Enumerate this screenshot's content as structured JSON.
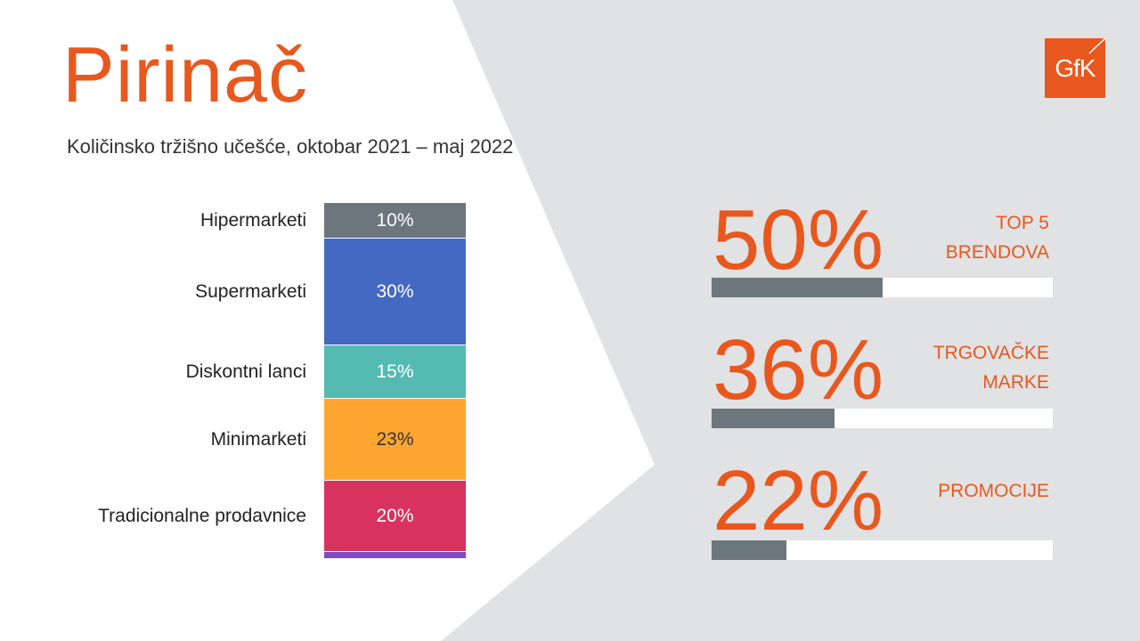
{
  "title": "Pirinač",
  "subtitle": "Količinsko tržišno učešće, oktobar 2021 – maj 2022",
  "logo_text": "GfK",
  "colors": {
    "accent": "#E8581E",
    "background_grey": "#E1E2E4",
    "kpi_bar": "#6C767D"
  },
  "chart_data": [
    {
      "type": "bar",
      "stacked": true,
      "categories": [
        "Hipermarketi",
        "Supermarketi",
        "Diskontni lanci",
        "Minimarketi",
        "Tradicionalne prodavnice",
        ""
      ],
      "values": [
        10,
        30,
        15,
        23,
        20,
        2
      ],
      "labels": [
        "10%",
        "30%",
        "15%",
        "23%",
        "20%",
        ""
      ],
      "colors": [
        "#6C767D",
        "#4469C3",
        "#55BAB1",
        "#FFA530",
        "#D7335E",
        "#7E4DC1"
      ],
      "label_colors": [
        "#ffffff",
        "#ffffff",
        "#ffffff",
        "#333333",
        "#ffffff",
        "#ffffff"
      ]
    },
    {
      "type": "bar",
      "categories": [
        "TOP 5 BRENDOVA",
        "TRGOVAČKE MARKE",
        "PROMOCIJE"
      ],
      "values": [
        50,
        36,
        22
      ],
      "ylim": [
        0,
        100
      ]
    }
  ],
  "kpis": [
    {
      "value": "50%",
      "label_lines": [
        "TOP 5",
        "BRENDOVA"
      ],
      "fraction": 0.5
    },
    {
      "value": "36%",
      "label_lines": [
        "TRGOVAČKE",
        "MARKE"
      ],
      "fraction": 0.36
    },
    {
      "value": "22%",
      "label_lines": [
        "PROMOCIJE"
      ],
      "fraction": 0.22
    }
  ]
}
